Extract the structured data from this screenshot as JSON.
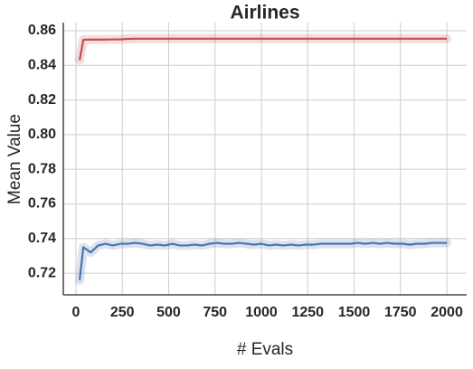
{
  "chart_data": {
    "type": "line",
    "title": "Airlines",
    "x_label": "# Evals",
    "y_label": "Mean Value",
    "x": [
      20,
      40,
      80,
      120,
      160,
      200,
      240,
      280,
      320,
      360,
      400,
      440,
      480,
      520,
      560,
      600,
      640,
      680,
      720,
      760,
      800,
      840,
      880,
      920,
      960,
      1000,
      1040,
      1080,
      1120,
      1160,
      1200,
      1240,
      1280,
      1320,
      1360,
      1400,
      1440,
      1480,
      1520,
      1560,
      1600,
      1640,
      1680,
      1720,
      1760,
      1800,
      1840,
      1880,
      1920,
      1960,
      2000
    ],
    "series": [
      {
        "color": "#c44e52",
        "values": [
          0.843,
          0.8548,
          0.8549,
          0.8549,
          0.8549,
          0.855,
          0.855,
          0.8553,
          0.8554,
          0.8554,
          0.8554,
          0.8554,
          0.8554,
          0.8554,
          0.8554,
          0.8554,
          0.8554,
          0.8554,
          0.8554,
          0.8554,
          0.8554,
          0.8554,
          0.8554,
          0.8554,
          0.8554,
          0.8554,
          0.8554,
          0.8554,
          0.8554,
          0.8554,
          0.8554,
          0.8554,
          0.8554,
          0.8554,
          0.8554,
          0.8554,
          0.8554,
          0.8554,
          0.8554,
          0.8554,
          0.8554,
          0.8554,
          0.8554,
          0.8554,
          0.8554,
          0.8554,
          0.8554,
          0.8554,
          0.8554,
          0.8554,
          0.8554
        ]
      },
      {
        "color": "#4c72b0",
        "values": [
          0.716,
          0.735,
          0.732,
          0.736,
          0.737,
          0.736,
          0.737,
          0.737,
          0.7375,
          0.737,
          0.736,
          0.7365,
          0.736,
          0.737,
          0.736,
          0.736,
          0.7365,
          0.736,
          0.737,
          0.7375,
          0.737,
          0.737,
          0.7375,
          0.737,
          0.7365,
          0.737,
          0.736,
          0.7365,
          0.736,
          0.7365,
          0.736,
          0.7365,
          0.7365,
          0.737,
          0.737,
          0.737,
          0.737,
          0.737,
          0.7375,
          0.737,
          0.7375,
          0.737,
          0.7375,
          0.737,
          0.737,
          0.7365,
          0.737,
          0.737,
          0.7375,
          0.7375,
          0.7375
        ]
      }
    ],
    "xlim": [
      -68,
      2107
    ],
    "ylim": [
      0.7075,
      0.8647
    ],
    "xticks": [
      0,
      250,
      500,
      750,
      1000,
      1250,
      1500,
      1750,
      2000
    ],
    "yticks": [
      0.72,
      0.74,
      0.76,
      0.78,
      {
        "value": 0.8,
        "label": "0.80"
      },
      0.82,
      0.84,
      0.86
    ],
    "grid": true
  }
}
